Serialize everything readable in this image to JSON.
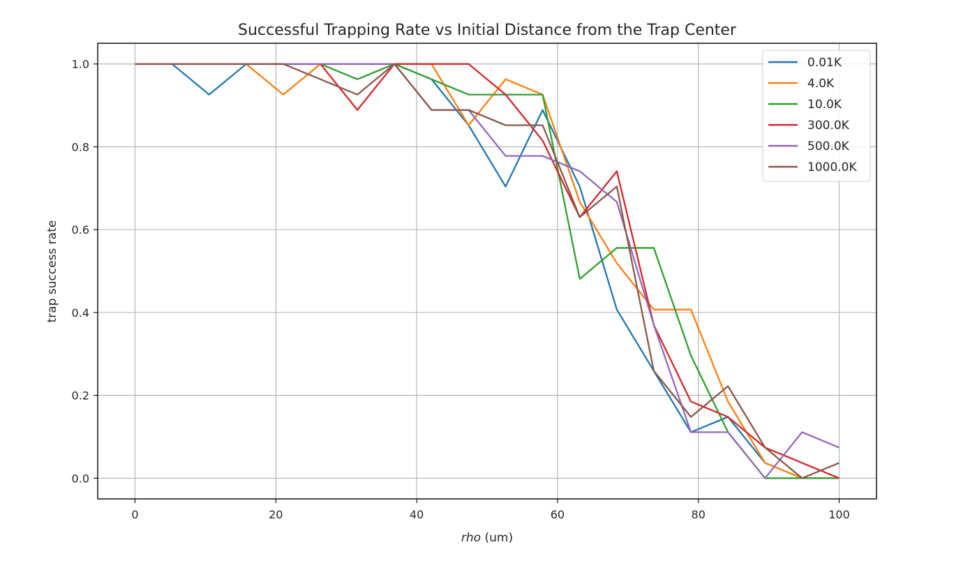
{
  "chart_data": {
    "type": "line",
    "title": "Successful Trapping Rate vs Initial Distance from the Trap Center",
    "xlabel_italic": "rho",
    "xlabel_rest": " (um)",
    "ylabel": "trap success rate",
    "xlim": [
      -5.3,
      105.3
    ],
    "ylim": [
      -0.05,
      1.05
    ],
    "xticks": [
      0,
      20,
      40,
      60,
      80,
      100
    ],
    "xtick_labels": [
      "0",
      "20",
      "40",
      "60",
      "80",
      "100"
    ],
    "yticks": [
      0.0,
      0.2,
      0.4,
      0.6,
      0.8,
      1.0
    ],
    "ytick_labels": [
      "0.0",
      "0.2",
      "0.4",
      "0.6",
      "0.8",
      "1.0"
    ],
    "grid": true,
    "legend_position": "top-right",
    "x": [
      0,
      5.26,
      10.53,
      15.79,
      21.05,
      26.32,
      31.58,
      36.84,
      42.11,
      47.37,
      52.63,
      57.89,
      63.16,
      68.42,
      73.68,
      78.95,
      84.21,
      89.47,
      94.74,
      100
    ],
    "series": [
      {
        "name": "0.01K",
        "color": "#1f77b4",
        "values": [
          1.0,
          1.0,
          0.926,
          1.0,
          1.0,
          1.0,
          1.0,
          1.0,
          0.963,
          0.852,
          0.704,
          0.889,
          0.704,
          0.407,
          0.259,
          0.111,
          0.148,
          0.037,
          0.0,
          0.0
        ]
      },
      {
        "name": "4.0K",
        "color": "#ff7f0e",
        "values": [
          1.0,
          1.0,
          1.0,
          1.0,
          0.926,
          1.0,
          1.0,
          1.0,
          1.0,
          0.852,
          0.963,
          0.926,
          0.667,
          0.519,
          0.407,
          0.407,
          0.185,
          0.037,
          0.0,
          0.0
        ]
      },
      {
        "name": "10.0K",
        "color": "#2ca02c",
        "values": [
          1.0,
          1.0,
          1.0,
          1.0,
          1.0,
          1.0,
          0.963,
          1.0,
          0.963,
          0.926,
          0.926,
          0.926,
          0.481,
          0.556,
          0.556,
          0.296,
          0.111,
          0.0,
          0.0,
          0.0
        ]
      },
      {
        "name": "300.0K",
        "color": "#d62728",
        "values": [
          1.0,
          1.0,
          1.0,
          1.0,
          1.0,
          1.0,
          0.889,
          1.0,
          1.0,
          1.0,
          0.926,
          0.815,
          0.63,
          0.741,
          0.37,
          0.185,
          0.148,
          0.074,
          0.037,
          0.0
        ]
      },
      {
        "name": "500.0K",
        "color": "#9467bd",
        "values": [
          1.0,
          1.0,
          1.0,
          1.0,
          1.0,
          1.0,
          1.0,
          1.0,
          0.889,
          0.889,
          0.778,
          0.778,
          0.741,
          0.667,
          0.37,
          0.111,
          0.111,
          0.0,
          0.111,
          0.074
        ]
      },
      {
        "name": "1000.0K",
        "color": "#8c564b",
        "values": [
          1.0,
          1.0,
          1.0,
          1.0,
          1.0,
          0.963,
          0.926,
          1.0,
          0.889,
          0.889,
          0.852,
          0.852,
          0.63,
          0.704,
          0.259,
          0.148,
          0.222,
          0.074,
          0.0,
          0.037
        ]
      }
    ]
  }
}
